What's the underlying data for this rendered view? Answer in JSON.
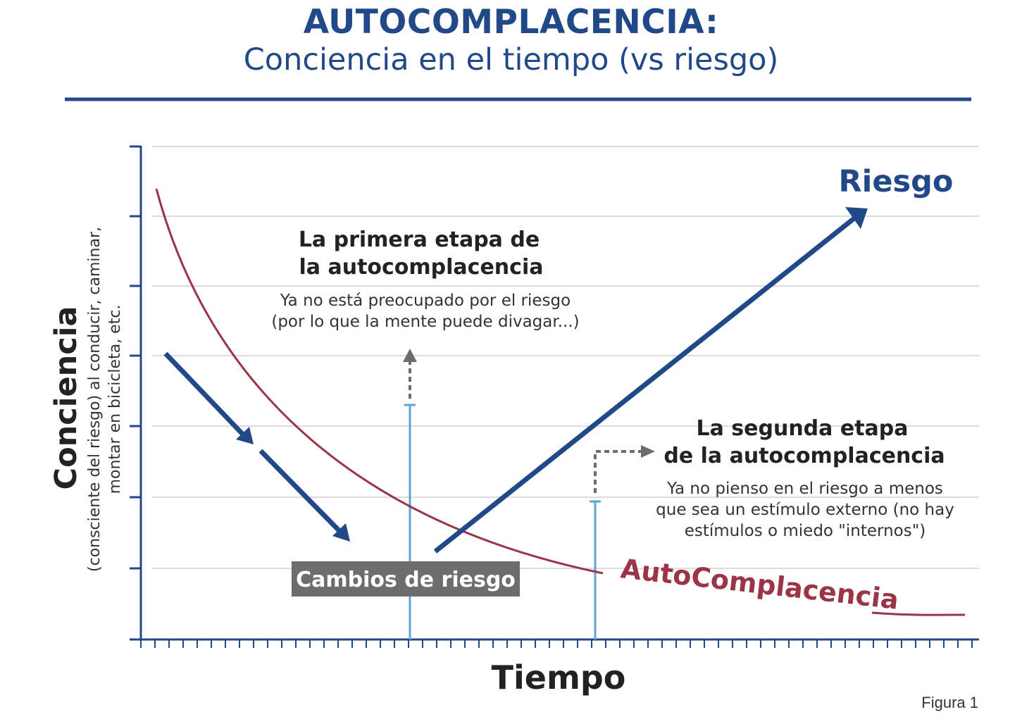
{
  "header": {
    "title": "AUTOCOMPLACENCIA:",
    "subtitle": "Conciencia en el tiempo (vs riesgo)"
  },
  "colors": {
    "blue": "#21498a",
    "red": "#9a3446",
    "lightblue": "#5aa5d6",
    "gray": "#6d6d6d",
    "grid": "#dcdcdc"
  },
  "axes": {
    "y_title": "Conciencia",
    "y_subtitle_line1": "(consciente del riesgo) al conducir, caminar,",
    "y_subtitle_line2": "montar en bicicleta, etc.",
    "x_title": "Tiempo"
  },
  "labels": {
    "riesgo": "Riesgo",
    "autocomplacencia": "AutoComplacencia",
    "cambios": "Cambios de riesgo",
    "stage1_title_line1": "La primera etapa de",
    "stage1_title_line2": "la autocomplacencia",
    "stage1_desc_line1": "Ya no está preocupado por el riesgo",
    "stage1_desc_line2": "(por lo que la mente puede divagar...)",
    "stage2_title_line1": "La segunda etapa",
    "stage2_title_line2": "de la autocomplacencia",
    "stage2_desc_line1": "Ya no pienso en el riesgo a menos",
    "stage2_desc_line2": "que sea un estímulo externo (no hay",
    "stage2_desc_line3": "estímulos o miedo \"internos\")"
  },
  "figure_label": "Figura 1"
}
